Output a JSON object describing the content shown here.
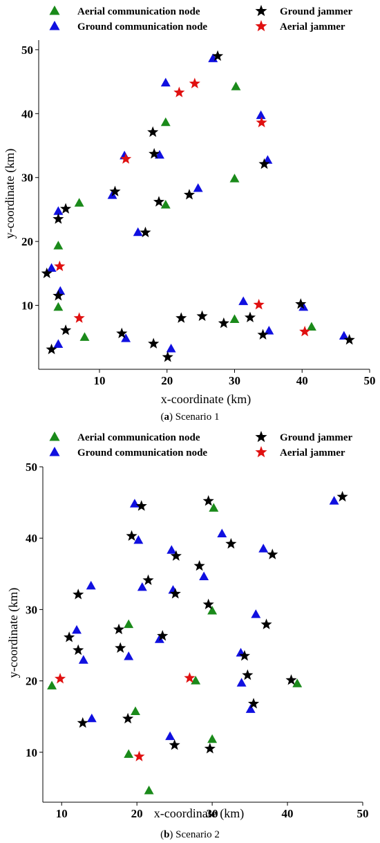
{
  "colors": {
    "aerial_node": "#1a8a1a",
    "ground_node": "#1010e0",
    "ground_jammer": "#000000",
    "aerial_jammer": "#e01010"
  },
  "chart_data": [
    {
      "type": "scatter",
      "caption_label": "a",
      "caption_text": " Scenario 1",
      "xlabel": "x-coordinate (km)",
      "ylabel": "y-coordinate (km)",
      "xticks": [
        10,
        20,
        30,
        40,
        50
      ],
      "yticks": [
        10,
        20,
        30,
        40,
        50
      ],
      "xlim": [
        1,
        50
      ],
      "ylim": [
        0,
        51.5
      ],
      "legend": {
        "placement": "top",
        "entries": [
          "Aerial communication node",
          "Ground communication node",
          "Ground jammer",
          "Aerial jammer"
        ]
      },
      "series": [
        {
          "name": "Aerial communication node",
          "marker": "triangle",
          "color": "#1a8a1a",
          "points": [
            [
              19.8,
              38.6
            ],
            [
              30.2,
              44.2
            ],
            [
              7.0,
              26.0
            ],
            [
              19.8,
              25.7
            ],
            [
              30.0,
              29.8
            ],
            [
              3.9,
              19.3
            ],
            [
              3.9,
              9.7
            ],
            [
              7.8,
              5.0
            ],
            [
              30.0,
              7.8
            ],
            [
              41.4,
              6.6
            ]
          ]
        },
        {
          "name": "Ground communication node",
          "marker": "triangle",
          "color": "#1010e0",
          "points": [
            [
              19.8,
              44.8
            ],
            [
              26.8,
              48.6
            ],
            [
              33.9,
              39.7
            ],
            [
              13.7,
              33.4
            ],
            [
              18.9,
              33.5
            ],
            [
              34.9,
              32.7
            ],
            [
              24.6,
              28.3
            ],
            [
              11.9,
              27.2
            ],
            [
              3.9,
              24.7
            ],
            [
              15.7,
              21.4
            ],
            [
              2.9,
              15.8
            ],
            [
              4.2,
              12.2
            ],
            [
              31.3,
              10.6
            ],
            [
              40.2,
              9.7
            ],
            [
              35.1,
              6.0
            ],
            [
              46.2,
              5.2
            ],
            [
              3.9,
              3.9
            ],
            [
              13.9,
              4.8
            ],
            [
              20.6,
              3.2
            ]
          ]
        },
        {
          "name": "Ground jammer",
          "marker": "star",
          "color": "#000000",
          "points": [
            [
              27.5,
              49.0
            ],
            [
              17.9,
              37.1
            ],
            [
              18.1,
              33.7
            ],
            [
              34.4,
              32.1
            ],
            [
              12.3,
              27.8
            ],
            [
              23.3,
              27.3
            ],
            [
              18.8,
              26.2
            ],
            [
              5.0,
              25.1
            ],
            [
              3.9,
              23.5
            ],
            [
              16.8,
              21.4
            ],
            [
              2.2,
              15.0
            ],
            [
              3.9,
              11.5
            ],
            [
              39.8,
              10.2
            ],
            [
              22.1,
              8.0
            ],
            [
              25.2,
              8.3
            ],
            [
              32.3,
              8.1
            ],
            [
              28.4,
              7.2
            ],
            [
              5.0,
              6.1
            ],
            [
              13.3,
              5.6
            ],
            [
              34.2,
              5.4
            ],
            [
              47.0,
              4.6
            ],
            [
              18.0,
              4.0
            ],
            [
              2.9,
              3.1
            ],
            [
              20.1,
              1.9
            ]
          ]
        },
        {
          "name": "Aerial jammer",
          "marker": "star",
          "color": "#e01010",
          "points": [
            [
              24.1,
              44.7
            ],
            [
              21.8,
              43.3
            ],
            [
              34.0,
              38.6
            ],
            [
              13.9,
              32.9
            ],
            [
              4.1,
              16.1
            ],
            [
              7.0,
              8.0
            ],
            [
              33.6,
              10.1
            ],
            [
              40.4,
              5.9
            ]
          ]
        }
      ]
    },
    {
      "type": "scatter",
      "caption_label": "b",
      "caption_text": " Scenario 2",
      "xlabel": "x-coordinate (km)",
      "ylabel": "y-coordinate (km)",
      "xticks": [
        10,
        20,
        30,
        40,
        50
      ],
      "yticks": [
        10,
        20,
        30,
        40,
        50
      ],
      "xlim": [
        7.5,
        50
      ],
      "ylim": [
        3,
        50
      ],
      "legend": {
        "placement": "top",
        "entries": [
          "Aerial communication node",
          "Ground communication node",
          "Ground jammer",
          "Aerial jammer"
        ]
      },
      "series": [
        {
          "name": "Aerial communication node",
          "marker": "triangle",
          "color": "#1a8a1a",
          "points": [
            [
              30.2,
              44.2
            ],
            [
              18.9,
              27.9
            ],
            [
              30.0,
              29.8
            ],
            [
              8.7,
              19.3
            ],
            [
              27.8,
              20.0
            ],
            [
              41.3,
              19.6
            ],
            [
              19.8,
              15.7
            ],
            [
              30.0,
              11.8
            ],
            [
              18.9,
              9.7
            ],
            [
              21.6,
              4.6
            ]
          ]
        },
        {
          "name": "Ground communication node",
          "marker": "triangle",
          "color": "#1010e0",
          "points": [
            [
              19.7,
              44.8
            ],
            [
              46.2,
              45.2
            ],
            [
              20.2,
              39.7
            ],
            [
              31.3,
              40.6
            ],
            [
              36.8,
              38.5
            ],
            [
              24.6,
              38.3
            ],
            [
              28.9,
              34.6
            ],
            [
              13.9,
              33.3
            ],
            [
              20.7,
              33.1
            ],
            [
              24.8,
              32.7
            ],
            [
              35.8,
              29.3
            ],
            [
              12.0,
              27.1
            ],
            [
              23.0,
              25.8
            ],
            [
              12.9,
              22.9
            ],
            [
              18.9,
              23.4
            ],
            [
              33.8,
              23.9
            ],
            [
              33.9,
              19.7
            ],
            [
              35.1,
              16.0
            ],
            [
              14.0,
              14.7
            ],
            [
              24.4,
              12.2
            ]
          ]
        },
        {
          "name": "Ground jammer",
          "marker": "star",
          "color": "#000000",
          "points": [
            [
              20.6,
              44.5
            ],
            [
              29.5,
              45.2
            ],
            [
              47.3,
              45.8
            ],
            [
              19.3,
              40.3
            ],
            [
              25.2,
              37.5
            ],
            [
              32.5,
              39.2
            ],
            [
              38.0,
              37.7
            ],
            [
              28.3,
              36.1
            ],
            [
              21.5,
              34.1
            ],
            [
              12.2,
              32.1
            ],
            [
              25.1,
              32.2
            ],
            [
              29.5,
              30.7
            ],
            [
              37.2,
              27.9
            ],
            [
              17.6,
              27.2
            ],
            [
              11.0,
              26.1
            ],
            [
              23.4,
              26.3
            ],
            [
              12.2,
              24.3
            ],
            [
              17.8,
              24.6
            ],
            [
              34.3,
              23.5
            ],
            [
              34.7,
              20.8
            ],
            [
              40.5,
              20.1
            ],
            [
              35.5,
              16.8
            ],
            [
              12.8,
              14.1
            ],
            [
              18.8,
              14.7
            ],
            [
              25.0,
              11.0
            ],
            [
              29.7,
              10.5
            ]
          ]
        },
        {
          "name": "Aerial jammer",
          "marker": "star",
          "color": "#e01010",
          "points": [
            [
              9.8,
              20.3
            ],
            [
              27.0,
              20.4
            ],
            [
              20.3,
              9.4
            ]
          ]
        }
      ]
    }
  ]
}
